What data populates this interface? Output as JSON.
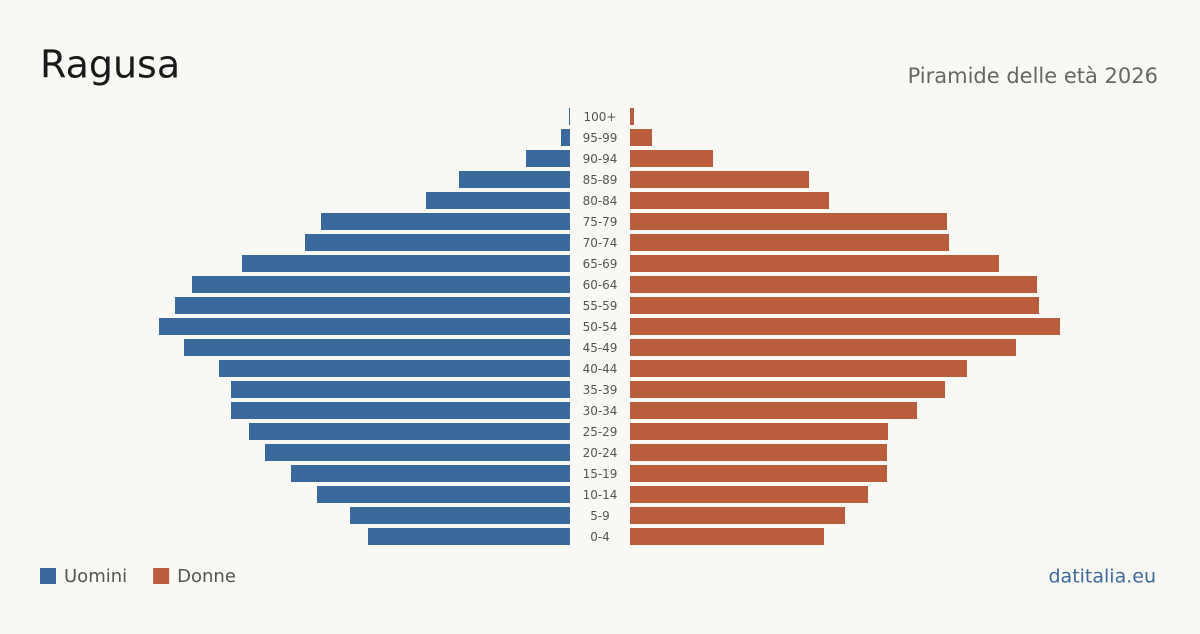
{
  "chart_data": {
    "type": "pyramid",
    "title": "Ragusa",
    "subtitle": "Piramide delle età 2026",
    "source": "datitalia.eu",
    "categories": [
      "100+",
      "95-99",
      "90-94",
      "85-89",
      "80-84",
      "75-79",
      "70-74",
      "65-69",
      "60-64",
      "55-59",
      "50-54",
      "45-49",
      "40-44",
      "35-39",
      "30-34",
      "25-29",
      "20-24",
      "15-19",
      "10-14",
      "5-9",
      "0-4"
    ],
    "series": [
      {
        "name": "Uomini",
        "color": "#3a6a9c",
        "values": [
          7,
          63,
          308,
          777,
          1008,
          1743,
          1855,
          2296,
          2646,
          2765,
          2877,
          2702,
          2457,
          2373,
          2373,
          2247,
          2135,
          1953,
          1771,
          1540,
          1414
        ]
      },
      {
        "name": "Donne",
        "color": "#b95d3d",
        "values": [
          28,
          154,
          581,
          1253,
          1393,
          2219,
          2233,
          2583,
          2849,
          2863,
          3010,
          2702,
          2359,
          2205,
          2009,
          1806,
          1799,
          1799,
          1666,
          1505,
          1358
        ]
      }
    ],
    "legend": "bottom-left"
  }
}
